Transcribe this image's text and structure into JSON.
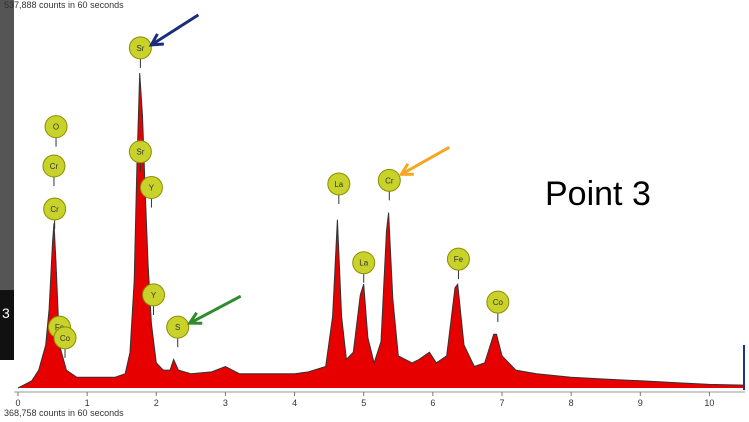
{
  "header": {
    "top_counts": "537,888 counts in 60 seconds",
    "bottom_counts": "368,758 counts in 60 seconds"
  },
  "annotation": {
    "point_label": "Point 3"
  },
  "left_strip_char": "3",
  "chart_data": {
    "type": "area",
    "title": "",
    "xlabel": "",
    "ylabel": "",
    "xlim": [
      0,
      10.5
    ],
    "ylim": [
      0,
      1
    ],
    "x_ticks": [
      0,
      1,
      2,
      3,
      4,
      5,
      6,
      7,
      8,
      9,
      10
    ],
    "grid": false,
    "series": [
      {
        "values": [
          [
            0.0,
            0.0
          ],
          [
            0.1,
            0.01
          ],
          [
            0.2,
            0.02
          ],
          [
            0.3,
            0.05
          ],
          [
            0.4,
            0.12
          ],
          [
            0.45,
            0.22
          ],
          [
            0.5,
            0.41
          ],
          [
            0.52,
            0.46
          ],
          [
            0.55,
            0.35
          ],
          [
            0.6,
            0.12
          ],
          [
            0.7,
            0.05
          ],
          [
            0.85,
            0.03
          ],
          [
            1.0,
            0.03
          ],
          [
            1.2,
            0.03
          ],
          [
            1.4,
            0.03
          ],
          [
            1.55,
            0.04
          ],
          [
            1.62,
            0.1
          ],
          [
            1.68,
            0.3
          ],
          [
            1.72,
            0.62
          ],
          [
            1.76,
            0.88
          ],
          [
            1.8,
            0.76
          ],
          [
            1.84,
            0.55
          ],
          [
            1.88,
            0.35
          ],
          [
            1.93,
            0.18
          ],
          [
            2.0,
            0.07
          ],
          [
            2.1,
            0.05
          ],
          [
            2.2,
            0.05
          ],
          [
            2.25,
            0.08
          ],
          [
            2.32,
            0.05
          ],
          [
            2.5,
            0.04
          ],
          [
            2.8,
            0.045
          ],
          [
            3.0,
            0.06
          ],
          [
            3.2,
            0.04
          ],
          [
            3.5,
            0.04
          ],
          [
            4.0,
            0.04
          ],
          [
            4.2,
            0.045
          ],
          [
            4.45,
            0.06
          ],
          [
            4.55,
            0.2
          ],
          [
            4.62,
            0.47
          ],
          [
            4.68,
            0.2
          ],
          [
            4.75,
            0.08
          ],
          [
            4.85,
            0.1
          ],
          [
            4.95,
            0.26
          ],
          [
            5.0,
            0.29
          ],
          [
            5.06,
            0.14
          ],
          [
            5.15,
            0.07
          ],
          [
            5.25,
            0.13
          ],
          [
            5.33,
            0.44
          ],
          [
            5.36,
            0.49
          ],
          [
            5.42,
            0.25
          ],
          [
            5.5,
            0.09
          ],
          [
            5.7,
            0.07
          ],
          [
            5.8,
            0.08
          ],
          [
            5.95,
            0.1
          ],
          [
            6.05,
            0.07
          ],
          [
            6.2,
            0.09
          ],
          [
            6.32,
            0.28
          ],
          [
            6.36,
            0.29
          ],
          [
            6.45,
            0.12
          ],
          [
            6.6,
            0.06
          ],
          [
            6.75,
            0.07
          ],
          [
            6.88,
            0.15
          ],
          [
            6.92,
            0.15
          ],
          [
            7.0,
            0.09
          ],
          [
            7.2,
            0.05
          ],
          [
            7.5,
            0.04
          ],
          [
            8.0,
            0.03
          ],
          [
            8.5,
            0.025
          ],
          [
            9.0,
            0.02
          ],
          [
            9.5,
            0.015
          ],
          [
            10.0,
            0.01
          ],
          [
            10.5,
            0.008
          ]
        ]
      }
    ],
    "element_labels": [
      {
        "label": "O",
        "x": 0.55,
        "y": 0.73,
        "color": "#c8d22a"
      },
      {
        "label": "Cr",
        "x": 0.52,
        "y": 0.62,
        "color": "#c8d22a"
      },
      {
        "label": "Cr",
        "x": 0.53,
        "y": 0.5,
        "color": "#c8d22a"
      },
      {
        "label": "Fe",
        "x": 0.6,
        "y": 0.17,
        "color": "#c8d22a"
      },
      {
        "label": "Co",
        "x": 0.68,
        "y": 0.14,
        "color": "#c8d22a"
      },
      {
        "label": "Sr",
        "x": 1.77,
        "y": 0.95,
        "color": "#c8d22a"
      },
      {
        "label": "Sr",
        "x": 1.77,
        "y": 0.66,
        "color": "#c8d22a"
      },
      {
        "label": "Y",
        "x": 1.93,
        "y": 0.56,
        "color": "#c8d22a"
      },
      {
        "label": "Y",
        "x": 1.96,
        "y": 0.26,
        "color": "#c8d22a"
      },
      {
        "label": "S",
        "x": 2.31,
        "y": 0.17,
        "color": "#c8d22a"
      },
      {
        "label": "La",
        "x": 4.64,
        "y": 0.57,
        "color": "#c8d22a"
      },
      {
        "label": "La",
        "x": 5.0,
        "y": 0.35,
        "color": "#c8d22a"
      },
      {
        "label": "Cr",
        "x": 5.37,
        "y": 0.58,
        "color": "#c8d22a"
      },
      {
        "label": "Fe",
        "x": 6.37,
        "y": 0.36,
        "color": "#c8d22a"
      },
      {
        "label": "Co",
        "x": 6.94,
        "y": 0.24,
        "color": "#c8d22a"
      }
    ],
    "arrows": [
      {
        "color": "#1c2e7a",
        "target": "Sr"
      },
      {
        "color": "#f5a623",
        "target": "Cr"
      },
      {
        "color": "#2e8b2e",
        "target": "S"
      }
    ],
    "colors": {
      "fill": "#e60000",
      "stroke": "#333333",
      "badge": "#c8d22a",
      "badge_stroke": "#8a8f00"
    }
  }
}
